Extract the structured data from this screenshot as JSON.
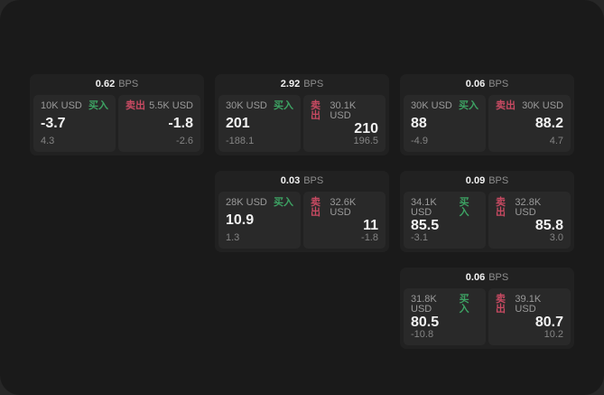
{
  "labels": {
    "buy": "买入",
    "sell": "卖出",
    "bps_unit": "BPS"
  },
  "colors": {
    "buy_green": "#3da263",
    "sell_red": "#c84a62",
    "screen_background": "#1a1a1a",
    "card_background": "#212121",
    "panel_background": "#292929"
  },
  "cards": [
    {
      "bps": "0.62",
      "buy": {
        "size": "10K USD",
        "price": "-3.7",
        "delta": "4.3"
      },
      "sell": {
        "size": "5.5K USD",
        "price": "-1.8",
        "delta": "-2.6"
      }
    },
    {
      "bps": "2.92",
      "buy": {
        "size": "30K USD",
        "price": "201",
        "delta": "-188.1"
      },
      "sell": {
        "size": "30.1K USD",
        "price": "210",
        "delta": "196.5"
      }
    },
    {
      "bps": "0.06",
      "buy": {
        "size": "30K USD",
        "price": "88",
        "delta": "-4.9"
      },
      "sell": {
        "size": "30K USD",
        "price": "88.2",
        "delta": "4.7"
      }
    },
    {
      "bps": "0.03",
      "buy": {
        "size": "28K USD",
        "price": "10.9",
        "delta": "1.3"
      },
      "sell": {
        "size": "32.6K USD",
        "price": "11",
        "delta": "-1.8"
      }
    },
    {
      "bps": "0.09",
      "buy": {
        "size": "34.1K USD",
        "price": "85.5",
        "delta": "-3.1"
      },
      "sell": {
        "size": "32.8K USD",
        "price": "85.8",
        "delta": "3.0"
      }
    },
    {
      "bps": "0.06",
      "buy": {
        "size": "31.8K USD",
        "price": "80.5",
        "delta": "-10.8"
      },
      "sell": {
        "size": "39.1K USD",
        "price": "80.7",
        "delta": "10.2"
      }
    }
  ]
}
